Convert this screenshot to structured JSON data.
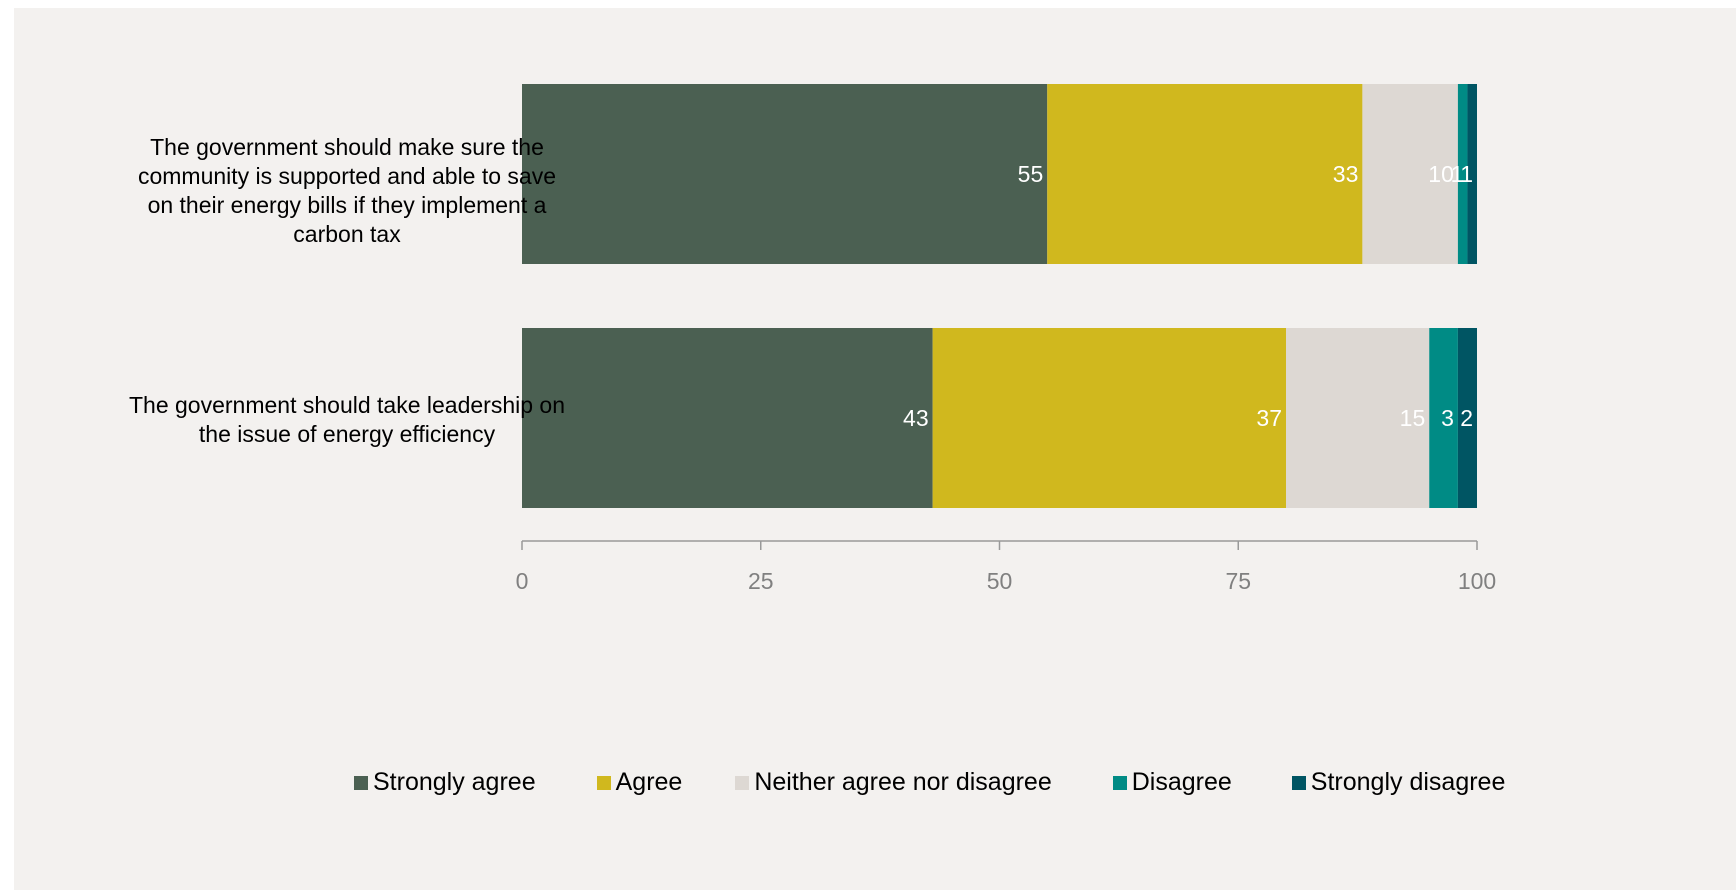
{
  "chart_data": {
    "type": "bar",
    "orientation": "horizontal",
    "stacked": true,
    "categories": [
      "The government should make sure the community is supported and able to save on their energy bills if they implement a carbon tax",
      "The government should take leadership on the issue of energy efficiency"
    ],
    "series": [
      {
        "name": "Strongly agree",
        "color": "#4b6052",
        "values": [
          55,
          43
        ],
        "labels": [
          "55",
          "43"
        ]
      },
      {
        "name": "Agree",
        "color": "#d0b81e",
        "values": [
          33,
          37
        ],
        "labels": [
          "33",
          "37"
        ]
      },
      {
        "name": "Neither agree nor disagree",
        "color": "#ddd8d3",
        "values": [
          10,
          15
        ],
        "labels": [
          "10",
          "15"
        ]
      },
      {
        "name": "Disagree",
        "color": "#008b85",
        "values": [
          1,
          3
        ],
        "labels": [
          "1",
          "3"
        ]
      },
      {
        "name": "Strongly disagree",
        "color": "#005563",
        "values": [
          1,
          2
        ],
        "labels": [
          "1",
          "2"
        ]
      }
    ],
    "xlim": [
      0,
      100
    ],
    "xticks": [
      "0",
      "25",
      "50",
      "75",
      "100"
    ],
    "title": "",
    "xlabel": "",
    "ylabel": "",
    "grid": false,
    "legend_position": "bottom"
  }
}
